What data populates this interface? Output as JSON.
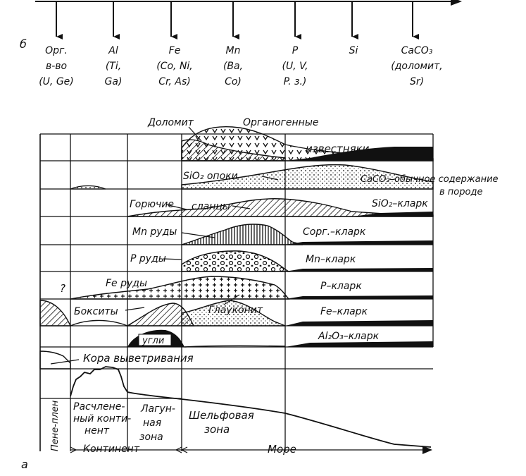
{
  "panel_b": {
    "letter": "б",
    "items": [
      {
        "lines": [
          "Орг.",
          "в-во",
          "(U, Ge)"
        ]
      },
      {
        "lines": [
          "Al",
          "(Ti,",
          "Ga)"
        ]
      },
      {
        "lines": [
          "Fe",
          "(Co, Ni,",
          "Cr, As)"
        ]
      },
      {
        "lines": [
          "Mn",
          "(Ba,",
          "Co)"
        ]
      },
      {
        "lines": [
          "P",
          "(U, V,",
          "P. з.)"
        ]
      },
      {
        "lines": [
          "Si"
        ]
      },
      {
        "lines": [
          "CaCO₃",
          "(доломит,",
          "Sr)"
        ]
      }
    ]
  },
  "panel_a": {
    "letter": "а",
    "labels": {
      "dolomite": "Доломит",
      "organogenic": "Органогенные",
      "limestones": "известняки",
      "sio2_opoki": "SiO₂ опоки",
      "caco3_normal": "CaCO₃–обычное содержание",
      "in_rock": "в породе",
      "combustible": "Горючие",
      "shales": "сланцы",
      "sio2_clarke": "SiO₂–кларк",
      "mn_ores": "Mn руды",
      "corg_clarke": "Cорг.–кларк",
      "p_ores": "P руды",
      "mn_clarke": "Mn–кларк",
      "question": "?",
      "fe_ores": "Fe руды",
      "p_clarke": "P–кларк",
      "bauxites": "Бокситы",
      "glauconite": "Глауконит",
      "fe_clarke": "Fe–кларк",
      "coal": "угли",
      "al2o3_clarke": "Al₂O₃–кларк",
      "weathering_crust": "Кора выветривания"
    },
    "zones": {
      "peneplain": "Пене-плен",
      "dissected_continent": [
        "Расчлене-",
        "ный конти-",
        "нент"
      ],
      "lagoon_zone": [
        "Лагун-",
        "ная",
        "зона"
      ],
      "shelf_zone": [
        "Шельфовая",
        "зона"
      ]
    },
    "axis": {
      "continent": "Континент",
      "sea": "Море"
    }
  }
}
